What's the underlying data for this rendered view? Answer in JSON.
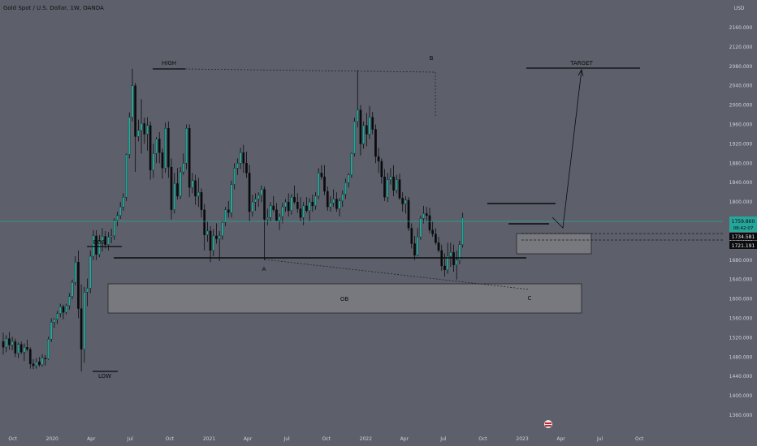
{
  "header": {
    "title": "Gold Spot / U.S. Dollar, 1W, OANDA"
  },
  "currency": "USD",
  "colors": {
    "background": "#5d606b",
    "bull": "#26a69a",
    "bear": "#0b0b0d",
    "current_line": "#26a69a",
    "box_fill": "#77797f",
    "line": "#0b0b0d"
  },
  "price_tags": {
    "current_price": "1759.860",
    "countdown": "08:42:07",
    "level_1": "1734.581",
    "level_2": "1721.191"
  },
  "chart_data": {
    "type": "candlestick",
    "title": "Gold Spot / U.S. Dollar, 1W, OANDA",
    "ylim": [
      1320,
      2180
    ],
    "y_ticks": [
      2160,
      2120,
      2080,
      2040,
      2000,
      1960,
      1920,
      1880,
      1840,
      1800,
      1760,
      1720,
      1680,
      1640,
      1600,
      1560,
      1520,
      1480,
      1440,
      1400,
      1360
    ],
    "xlim": [
      "2019-09-09",
      "2024-02-12"
    ],
    "x_ticks": [
      {
        "label": "Oct",
        "date": "2019-10-01"
      },
      {
        "label": "2020",
        "date": "2020-01-01"
      },
      {
        "label": "Apr",
        "date": "2020-04-01"
      },
      {
        "label": "Jul",
        "date": "2020-07-01"
      },
      {
        "label": "Oct",
        "date": "2020-10-01"
      },
      {
        "label": "2021",
        "date": "2021-01-01"
      },
      {
        "label": "Apr",
        "date": "2021-04-01"
      },
      {
        "label": "Jul",
        "date": "2021-07-01"
      },
      {
        "label": "Oct",
        "date": "2021-10-01"
      },
      {
        "label": "2022",
        "date": "2022-01-01"
      },
      {
        "label": "Apr",
        "date": "2022-04-01"
      },
      {
        "label": "Jul",
        "date": "2022-07-01"
      },
      {
        "label": "Oct",
        "date": "2022-10-01"
      },
      {
        "label": "2023",
        "date": "2023-01-01"
      },
      {
        "label": "Apr",
        "date": "2023-04-01"
      },
      {
        "label": "Jul",
        "date": "2023-07-01"
      },
      {
        "label": "Oct",
        "date": "2023-10-01"
      }
    ],
    "series_start": "2019-09-09",
    "series_interval": "1W",
    "ohlc": [
      [
        1512,
        1530,
        1485,
        1500
      ],
      [
        1500,
        1525,
        1490,
        1518
      ],
      [
        1518,
        1532,
        1495,
        1505
      ],
      [
        1505,
        1522,
        1494,
        1512
      ],
      [
        1512,
        1518,
        1480,
        1488
      ],
      [
        1488,
        1510,
        1478,
        1506
      ],
      [
        1506,
        1512,
        1486,
        1490
      ],
      [
        1490,
        1508,
        1472,
        1500
      ],
      [
        1500,
        1516,
        1492,
        1496
      ],
      [
        1496,
        1500,
        1456,
        1466
      ],
      [
        1466,
        1476,
        1455,
        1462
      ],
      [
        1462,
        1478,
        1456,
        1470
      ],
      [
        1470,
        1480,
        1460,
        1464
      ],
      [
        1464,
        1486,
        1460,
        1478
      ],
      [
        1478,
        1484,
        1462,
        1476
      ],
      [
        1476,
        1522,
        1474,
        1517
      ],
      [
        1517,
        1560,
        1511,
        1552
      ],
      [
        1552,
        1560,
        1540,
        1558
      ],
      [
        1558,
        1575,
        1548,
        1570
      ],
      [
        1570,
        1590,
        1562,
        1584
      ],
      [
        1584,
        1588,
        1558,
        1572
      ],
      [
        1572,
        1590,
        1568,
        1586
      ],
      [
        1586,
        1612,
        1578,
        1605
      ],
      [
        1605,
        1640,
        1600,
        1634
      ],
      [
        1634,
        1688,
        1628,
        1676
      ],
      [
        1676,
        1700,
        1560,
        1580
      ],
      [
        1580,
        1630,
        1450,
        1496
      ],
      [
        1496,
        1625,
        1468,
        1614
      ],
      [
        1614,
        1642,
        1585,
        1622
      ],
      [
        1622,
        1700,
        1612,
        1688
      ],
      [
        1688,
        1742,
        1680,
        1730
      ],
      [
        1730,
        1742,
        1680,
        1692
      ],
      [
        1692,
        1732,
        1686,
        1718
      ],
      [
        1718,
        1746,
        1698,
        1729
      ],
      [
        1729,
        1740,
        1704,
        1712
      ],
      [
        1712,
        1738,
        1700,
        1728
      ],
      [
        1728,
        1745,
        1715,
        1730
      ],
      [
        1730,
        1766,
        1722,
        1762
      ],
      [
        1762,
        1780,
        1750,
        1772
      ],
      [
        1772,
        1800,
        1765,
        1790
      ],
      [
        1790,
        1818,
        1782,
        1810
      ],
      [
        1810,
        1900,
        1802,
        1898
      ],
      [
        1898,
        1985,
        1890,
        1975
      ],
      [
        1975,
        2075,
        1966,
        2040
      ],
      [
        2040,
        2046,
        1862,
        1935
      ],
      [
        1935,
        1970,
        1925,
        1948
      ],
      [
        1948,
        2012,
        1900,
        1962
      ],
      [
        1962,
        1974,
        1920,
        1940
      ],
      [
        1940,
        1975,
        1906,
        1958
      ],
      [
        1958,
        1966,
        1846,
        1866
      ],
      [
        1866,
        1920,
        1850,
        1900
      ],
      [
        1900,
        1934,
        1880,
        1930
      ],
      [
        1930,
        1944,
        1880,
        1902
      ],
      [
        1902,
        1910,
        1848,
        1870
      ],
      [
        1870,
        1964,
        1860,
        1952
      ],
      [
        1952,
        1966,
        1850,
        1872
      ],
      [
        1872,
        1890,
        1764,
        1784
      ],
      [
        1784,
        1860,
        1776,
        1838
      ],
      [
        1838,
        1870,
        1805,
        1812
      ],
      [
        1812,
        1872,
        1806,
        1862
      ],
      [
        1862,
        1900,
        1856,
        1880
      ],
      [
        1880,
        1960,
        1868,
        1952
      ],
      [
        1952,
        1960,
        1810,
        1830
      ],
      [
        1830,
        1860,
        1818,
        1844
      ],
      [
        1844,
        1856,
        1794,
        1812
      ],
      [
        1812,
        1850,
        1790,
        1820
      ],
      [
        1820,
        1828,
        1768,
        1784
      ],
      [
        1784,
        1796,
        1700,
        1732
      ],
      [
        1732,
        1760,
        1718,
        1740
      ],
      [
        1740,
        1750,
        1676,
        1700
      ],
      [
        1700,
        1744,
        1688,
        1730
      ],
      [
        1730,
        1756,
        1714,
        1724
      ],
      [
        1724,
        1740,
        1678,
        1730
      ],
      [
        1730,
        1762,
        1722,
        1758
      ],
      [
        1758,
        1790,
        1750,
        1784
      ],
      [
        1784,
        1802,
        1768,
        1778
      ],
      [
        1778,
        1844,
        1768,
        1836
      ],
      [
        1836,
        1880,
        1826,
        1870
      ],
      [
        1870,
        1890,
        1856,
        1880
      ],
      [
        1880,
        1912,
        1868,
        1902
      ],
      [
        1902,
        1918,
        1860,
        1880
      ],
      [
        1880,
        1904,
        1850,
        1860
      ],
      [
        1860,
        1877,
        1760,
        1780
      ],
      [
        1780,
        1815,
        1770,
        1800
      ],
      [
        1800,
        1818,
        1782,
        1806
      ],
      [
        1806,
        1820,
        1790,
        1814
      ],
      [
        1814,
        1834,
        1800,
        1826
      ],
      [
        1826,
        1832,
        1680,
        1764
      ],
      [
        1764,
        1786,
        1752,
        1768
      ],
      [
        1768,
        1800,
        1760,
        1792
      ],
      [
        1792,
        1812,
        1780,
        1784
      ],
      [
        1784,
        1798,
        1760,
        1762
      ],
      [
        1762,
        1776,
        1742,
        1770
      ],
      [
        1770,
        1798,
        1756,
        1790
      ],
      [
        1790,
        1806,
        1780,
        1800
      ],
      [
        1800,
        1818,
        1770,
        1782
      ],
      [
        1782,
        1816,
        1774,
        1810
      ],
      [
        1810,
        1834,
        1796,
        1800
      ],
      [
        1800,
        1818,
        1778,
        1786
      ],
      [
        1786,
        1810,
        1760,
        1768
      ],
      [
        1768,
        1800,
        1752,
        1792
      ],
      [
        1792,
        1810,
        1778,
        1782
      ],
      [
        1782,
        1808,
        1760,
        1800
      ],
      [
        1800,
        1815,
        1780,
        1792
      ],
      [
        1792,
        1820,
        1784,
        1812
      ],
      [
        1812,
        1870,
        1806,
        1860
      ],
      [
        1860,
        1876,
        1846,
        1852
      ],
      [
        1852,
        1876,
        1814,
        1822
      ],
      [
        1822,
        1832,
        1782,
        1790
      ],
      [
        1790,
        1812,
        1780,
        1798
      ],
      [
        1798,
        1826,
        1790,
        1806
      ],
      [
        1806,
        1820,
        1780,
        1786
      ],
      [
        1786,
        1808,
        1770,
        1802
      ],
      [
        1802,
        1824,
        1790,
        1816
      ],
      [
        1816,
        1848,
        1806,
        1840
      ],
      [
        1840,
        1860,
        1830,
        1856
      ],
      [
        1856,
        1902,
        1850,
        1900
      ],
      [
        1900,
        1974,
        1894,
        1966
      ],
      [
        1966,
        2072,
        1954,
        1990
      ],
      [
        1990,
        2000,
        1896,
        1920
      ],
      [
        1920,
        1966,
        1910,
        1958
      ],
      [
        1958,
        1984,
        1915,
        1940
      ],
      [
        1940,
        1998,
        1930,
        1975
      ],
      [
        1975,
        1986,
        1940,
        1950
      ],
      [
        1950,
        1960,
        1880,
        1894
      ],
      [
        1894,
        1912,
        1860,
        1884
      ],
      [
        1884,
        1890,
        1838,
        1852
      ],
      [
        1852,
        1868,
        1802,
        1810
      ],
      [
        1810,
        1860,
        1800,
        1846
      ],
      [
        1846,
        1870,
        1836,
        1852
      ],
      [
        1852,
        1876,
        1812,
        1824
      ],
      [
        1824,
        1856,
        1818,
        1846
      ],
      [
        1846,
        1858,
        1804,
        1808
      ],
      [
        1808,
        1820,
        1780,
        1796
      ],
      [
        1796,
        1812,
        1776,
        1804
      ],
      [
        1804,
        1810,
        1740,
        1746
      ],
      [
        1746,
        1756,
        1704,
        1714
      ],
      [
        1714,
        1730,
        1680,
        1690
      ],
      [
        1690,
        1746,
        1688,
        1728
      ],
      [
        1728,
        1772,
        1722,
        1766
      ],
      [
        1766,
        1792,
        1756,
        1776
      ],
      [
        1776,
        1790,
        1760,
        1772
      ],
      [
        1772,
        1788,
        1736,
        1742
      ],
      [
        1742,
        1760,
        1728,
        1734
      ],
      [
        1734,
        1746,
        1712,
        1716
      ],
      [
        1716,
        1728,
        1696,
        1700
      ],
      [
        1700,
        1712,
        1658,
        1668
      ],
      [
        1668,
        1694,
        1646,
        1660
      ],
      [
        1660,
        1716,
        1652,
        1688
      ],
      [
        1688,
        1716,
        1666,
        1696
      ],
      [
        1696,
        1712,
        1656,
        1670
      ],
      [
        1670,
        1700,
        1640,
        1680
      ],
      [
        1680,
        1720,
        1672,
        1712
      ],
      [
        1712,
        1778,
        1706,
        1768
      ]
    ],
    "annotations": [
      {
        "label": "HIGH",
        "price": 2073
      },
      {
        "label": "B",
        "price": 2070
      },
      {
        "label": "TARGET",
        "price": 2075
      },
      {
        "label": "BOS",
        "price": 1692
      },
      {
        "label": "A",
        "price": 1680
      },
      {
        "label": "C",
        "price": 1618
      },
      {
        "label": "LOW",
        "price": 1452
      },
      {
        "label": "OB",
        "price": 1600
      }
    ]
  }
}
